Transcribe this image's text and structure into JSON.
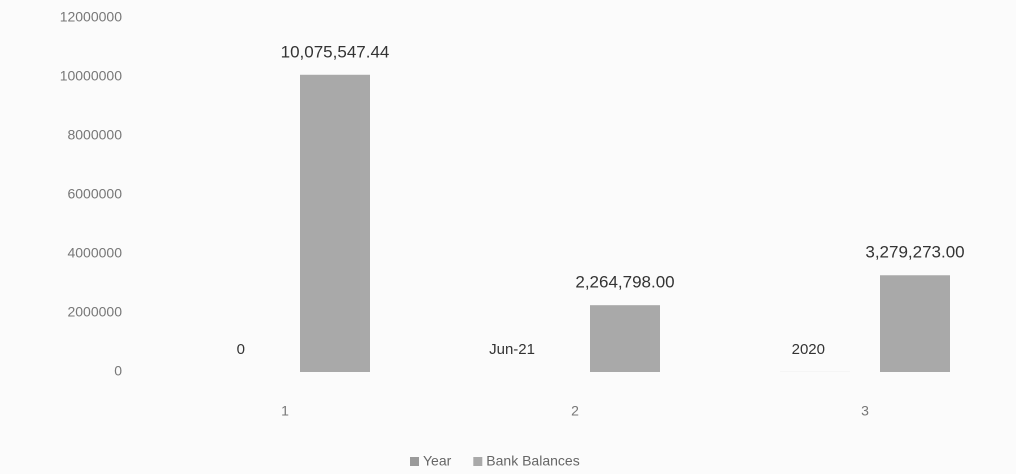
{
  "chart_data": {
    "type": "bar",
    "categories": [
      "1",
      "2",
      "3"
    ],
    "series": [
      {
        "name": "Year",
        "color": "#9a9a9a",
        "values": [
          0,
          null,
          2020
        ],
        "value_labels": [
          "0",
          "Jun-21",
          "2020"
        ]
      },
      {
        "name": "Bank Balances",
        "color": "#a9a9a9",
        "values": [
          10075547.44,
          2264798,
          3279273
        ],
        "value_labels": [
          "10,075,547.44",
          "2,264,798.00",
          "3,279,273.00"
        ]
      }
    ],
    "ylim": [
      0,
      12000000
    ],
    "yticks": [
      0,
      2000000,
      4000000,
      6000000,
      8000000,
      10000000,
      12000000
    ],
    "grid": false,
    "legend": "bottom"
  }
}
